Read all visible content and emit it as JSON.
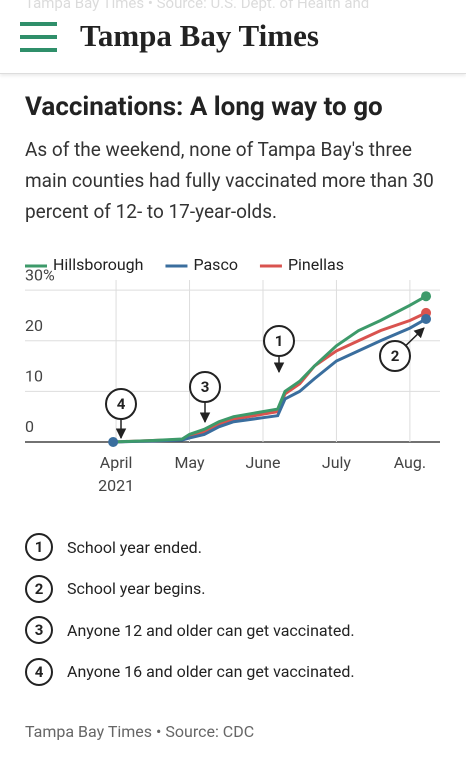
{
  "header": {
    "ghost_text": "Tampa Bay Times • Source: U.S. Dept. of Health and",
    "logo": "Tampa Bay Times"
  },
  "chart_data": {
    "type": "line",
    "title": "Vaccinations: A long way to go",
    "subtitle": "As of the weekend, none of Tampa Bay's three main counties had fully vaccinated more than 30 percent of 12- to 17-year-olds.",
    "x": [
      3.96,
      4.5,
      4.9,
      5.0,
      5.2,
      5.4,
      5.6,
      6.0,
      6.2,
      6.3,
      6.5,
      6.7,
      7.0,
      7.3,
      7.6,
      8.0,
      8.22
    ],
    "series": [
      {
        "name": "Hillsborough",
        "color": "#3d9a6a",
        "values": [
          0,
          0.3,
          0.6,
          1.5,
          2.5,
          4,
          5,
          6,
          6.5,
          10,
          12,
          15,
          19,
          22,
          24,
          27,
          28.8
        ]
      },
      {
        "name": "Pasco",
        "color": "#3a6e9e",
        "values": [
          0,
          0.2,
          0.4,
          0.8,
          1.5,
          3,
          4,
          4.8,
          5.2,
          8.5,
          10,
          12.5,
          16,
          18,
          20,
          22.5,
          24.3
        ]
      },
      {
        "name": "Pinellas",
        "color": "#d9534f",
        "values": [
          0,
          0.3,
          0.5,
          1,
          2,
          3.5,
          4.5,
          5.5,
          6,
          9.5,
          11.5,
          15,
          18,
          20,
          22,
          24,
          25.5
        ]
      }
    ],
    "xlim": [
      2.76,
      8.41
    ],
    "xticks": [
      {
        "value": 4,
        "label": "April"
      },
      {
        "value": 5,
        "label": "May"
      },
      {
        "value": 6,
        "label": "June"
      },
      {
        "value": 7,
        "label": "July"
      },
      {
        "value": 8,
        "label": "Aug."
      }
    ],
    "x_year_label": "2021",
    "ylim": [
      0,
      32
    ],
    "yticks": [
      0,
      10,
      20,
      {
        "value": 30,
        "label": "30%"
      }
    ],
    "grid": true,
    "legend": "top",
    "annotations": [
      {
        "label": "1",
        "text": "School year ended."
      },
      {
        "label": "2",
        "text": "School year begins."
      },
      {
        "label": "3",
        "text": "Anyone 12 and older can get vaccinated."
      },
      {
        "label": "4",
        "text": "Anyone 16 and older can get vaccinated."
      }
    ],
    "source": "Tampa Bay Times • Source: CDC"
  }
}
